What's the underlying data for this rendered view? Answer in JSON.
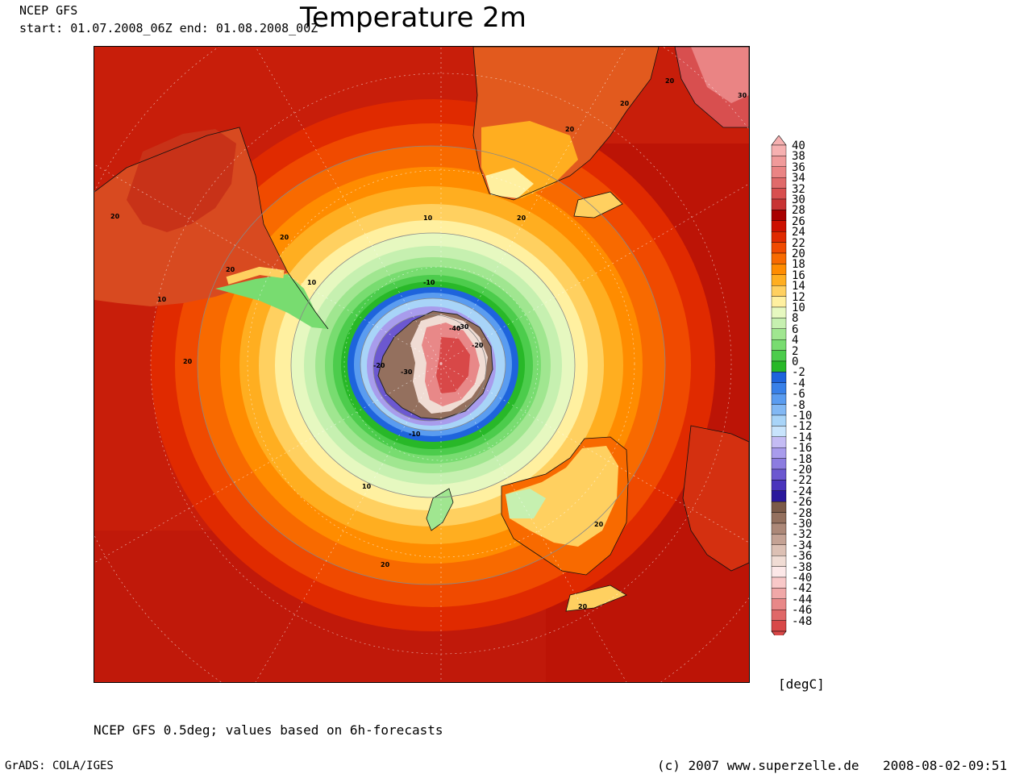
{
  "header": {
    "source": "NCEP GFS",
    "period": "start: 01.07.2008_06Z end: 01.08.2008_00Z",
    "title": "Temperature 2m"
  },
  "map": {
    "projection_center": "South Pole",
    "contour_labels": [
      "20",
      "20",
      "20",
      "20",
      "20",
      "20",
      "20",
      "20",
      "20",
      "20",
      "10",
      "10",
      "10",
      "10",
      "-10",
      "-10",
      "-20",
      "-20",
      "-30",
      "-30",
      "-40",
      "30",
      "20"
    ],
    "colors": {
      "ocean_warm": "#c81e0a",
      "land_warm": "#d86a34"
    }
  },
  "colorbar": {
    "unit": "[degC]",
    "levels": [
      {
        "label": "40",
        "color": "#f6b0b0"
      },
      {
        "label": "38",
        "color": "#f09a9a"
      },
      {
        "label": "36",
        "color": "#ea8484"
      },
      {
        "label": "34",
        "color": "#e06a6a"
      },
      {
        "label": "32",
        "color": "#d84f4f"
      },
      {
        "label": "30",
        "color": "#c83434"
      },
      {
        "label": "28",
        "color": "#a80000"
      },
      {
        "label": "26",
        "color": "#cc1000"
      },
      {
        "label": "24",
        "color": "#e02a00"
      },
      {
        "label": "22",
        "color": "#f04a00"
      },
      {
        "label": "20",
        "color": "#f86a00"
      },
      {
        "label": "18",
        "color": "#ff8c00"
      },
      {
        "label": "16",
        "color": "#ffae20"
      },
      {
        "label": "14",
        "color": "#ffd060"
      },
      {
        "label": "12",
        "color": "#fff0a0"
      },
      {
        "label": "10",
        "color": "#e6f8c0"
      },
      {
        "label": "8",
        "color": "#c6f0b0"
      },
      {
        "label": "6",
        "color": "#a0e690"
      },
      {
        "label": "4",
        "color": "#78dc70"
      },
      {
        "label": "2",
        "color": "#4ccc4c"
      },
      {
        "label": "0",
        "color": "#28b828"
      },
      {
        "label": "-2",
        "color": "#1e64dc"
      },
      {
        "label": "-4",
        "color": "#3880e8"
      },
      {
        "label": "-6",
        "color": "#5a9cf0"
      },
      {
        "label": "-8",
        "color": "#82b8f4"
      },
      {
        "label": "-10",
        "color": "#a8d4f8"
      },
      {
        "label": "-12",
        "color": "#c8e4fc"
      },
      {
        "label": "-14",
        "color": "#c4bcf4"
      },
      {
        "label": "-16",
        "color": "#a89cec"
      },
      {
        "label": "-18",
        "color": "#8c7ce0"
      },
      {
        "label": "-20",
        "color": "#6c58d0"
      },
      {
        "label": "-22",
        "color": "#4a34bc"
      },
      {
        "label": "-24",
        "color": "#2a189c"
      },
      {
        "label": "-26",
        "color": "#7c5a48"
      },
      {
        "label": "-28",
        "color": "#94705e"
      },
      {
        "label": "-30",
        "color": "#ac8878"
      },
      {
        "label": "-32",
        "color": "#c4a294"
      },
      {
        "label": "-34",
        "color": "#dcc0b4"
      },
      {
        "label": "-36",
        "color": "#f0dcd4"
      },
      {
        "label": "-38",
        "color": "#fce8e8"
      },
      {
        "label": "-40",
        "color": "#f8c8c8"
      },
      {
        "label": "-42",
        "color": "#f0a8a8"
      },
      {
        "label": "-44",
        "color": "#e88888"
      },
      {
        "label": "-46",
        "color": "#e06868"
      },
      {
        "label": "-48",
        "color": "#d84848"
      }
    ]
  },
  "footer": {
    "note": "NCEP GFS 0.5deg; values based on 6h-forecasts",
    "software": "GrADS: COLA/IGES",
    "copyright": "(c) 2007 www.superzelle.de",
    "timestamp": "2008-08-02-09:51"
  }
}
